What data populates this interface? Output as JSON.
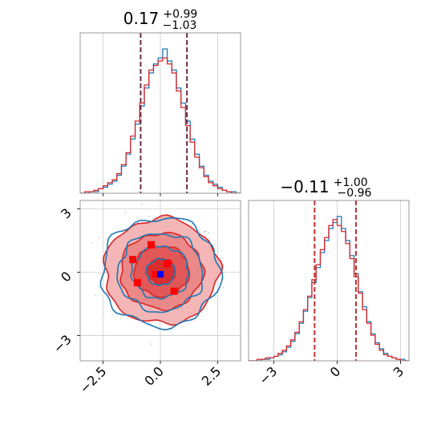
{
  "chart_data": [
    {
      "type": "histogram",
      "panel": "marginal-x",
      "title": {
        "median": "0.17",
        "plus": "+0.99",
        "minus": "−1.03"
      },
      "xlim": [
        -3.5,
        3.5
      ],
      "grid": true,
      "quantile_lines": [
        -0.86,
        1.16
      ],
      "series": [
        {
          "color": "#1f77b4",
          "bin_edges": [
            -3.5,
            -3.3,
            -3.1,
            -2.9,
            -2.7,
            -2.5,
            -2.3,
            -2.1,
            -1.9,
            -1.7,
            -1.5,
            -1.3,
            -1.1,
            -0.9,
            -0.7,
            -0.5,
            -0.3,
            -0.1,
            0.1,
            0.3,
            0.5,
            0.7,
            0.9,
            1.1,
            1.3,
            1.5,
            1.7,
            1.9,
            2.1,
            2.3,
            2.5,
            2.7,
            2.9,
            3.1,
            3.3,
            3.5
          ],
          "counts": [
            0,
            0,
            1,
            1,
            3,
            4,
            6,
            8,
            12,
            18,
            26,
            36,
            46,
            58,
            70,
            80,
            86,
            90,
            96,
            88,
            82,
            70,
            60,
            48,
            36,
            26,
            18,
            12,
            8,
            6,
            4,
            2,
            1,
            1,
            0
          ]
        },
        {
          "color": "#d62728",
          "bin_edges": [
            -3.5,
            -3.3,
            -3.1,
            -2.9,
            -2.7,
            -2.5,
            -2.3,
            -2.1,
            -1.9,
            -1.7,
            -1.5,
            -1.3,
            -1.1,
            -0.9,
            -0.7,
            -0.5,
            -0.3,
            -0.1,
            0.1,
            0.3,
            0.5,
            0.7,
            0.9,
            1.1,
            1.3,
            1.5,
            1.7,
            1.9,
            2.1,
            2.3,
            2.5,
            2.7,
            2.9,
            3.1,
            3.3,
            3.5
          ],
          "counts": [
            0,
            1,
            1,
            2,
            3,
            5,
            7,
            9,
            13,
            19,
            27,
            38,
            48,
            60,
            72,
            82,
            85,
            88,
            90,
            86,
            80,
            68,
            57,
            45,
            34,
            24,
            17,
            11,
            7,
            5,
            3,
            2,
            1,
            0,
            0
          ]
        }
      ],
      "xticks": []
    },
    {
      "type": "contour",
      "panel": "joint",
      "xlim": [
        -3.5,
        3.5
      ],
      "ylim": [
        -4.2,
        3.4
      ],
      "grid": true,
      "xticks": [
        -2.5,
        0.0,
        2.5
      ],
      "xtick_labels": [
        "−2.5",
        "0.0",
        "2.5"
      ],
      "yticks": [
        3,
        0,
        -3
      ],
      "ytick_labels": [
        "3",
        "0",
        "−3"
      ],
      "series": [
        {
          "color": "#1f77b4",
          "levels_sigma": [
            0.6,
            1.2,
            1.8,
            2.5
          ],
          "center": [
            0.0,
            0.0
          ]
        },
        {
          "color": "#d62728",
          "levels_sigma": [
            0.6,
            1.2,
            1.8,
            2.5
          ],
          "center": [
            0.05,
            0.05
          ],
          "filled": true
        }
      ],
      "red_points": [
        [
          -1.2,
          0.6
        ],
        [
          -0.4,
          1.3
        ],
        [
          0.3,
          0.4
        ],
        [
          -1.0,
          -0.5
        ],
        [
          0.6,
          -0.9
        ],
        [
          -0.2,
          -0.1
        ]
      ],
      "blue_points": [
        [
          0.0,
          -0.1
        ]
      ]
    },
    {
      "type": "histogram",
      "panel": "marginal-y",
      "title": {
        "median": "−0.11",
        "plus": "+1.00",
        "minus": "−0.96"
      },
      "xlim": [
        -4.2,
        3.4
      ],
      "grid": true,
      "quantile_lines": [
        -1.07,
        0.89
      ],
      "xticks": [
        -3,
        0,
        3
      ],
      "xtick_labels": [
        "−3",
        "0",
        "3"
      ],
      "series": [
        {
          "color": "#1f77b4",
          "bin_edges": [
            -4.2,
            -4.0,
            -3.8,
            -3.6,
            -3.4,
            -3.2,
            -3.0,
            -2.8,
            -2.6,
            -2.4,
            -2.2,
            -2.0,
            -1.8,
            -1.6,
            -1.4,
            -1.2,
            -1.0,
            -0.8,
            -0.6,
            -0.4,
            -0.2,
            0.0,
            0.2,
            0.4,
            0.6,
            0.8,
            1.0,
            1.2,
            1.4,
            1.6,
            1.8,
            2.0,
            2.2,
            2.4,
            2.6,
            2.8,
            3.0,
            3.2,
            3.4
          ],
          "counts": [
            0,
            0,
            0,
            1,
            1,
            2,
            3,
            4,
            6,
            9,
            13,
            18,
            25,
            33,
            42,
            52,
            62,
            72,
            80,
            88,
            92,
            96,
            88,
            80,
            70,
            58,
            46,
            36,
            26,
            18,
            12,
            8,
            5,
            3,
            2,
            1,
            1,
            0
          ]
        },
        {
          "color": "#d62728",
          "bin_edges": [
            -4.2,
            -4.0,
            -3.8,
            -3.6,
            -3.4,
            -3.2,
            -3.0,
            -2.8,
            -2.6,
            -2.4,
            -2.2,
            -2.0,
            -1.8,
            -1.6,
            -1.4,
            -1.2,
            -1.0,
            -0.8,
            -0.6,
            -0.4,
            -0.2,
            0.0,
            0.2,
            0.4,
            0.6,
            0.8,
            1.0,
            1.2,
            1.4,
            1.6,
            1.8,
            2.0,
            2.2,
            2.4,
            2.6,
            2.8,
            3.0,
            3.2,
            3.4
          ],
          "counts": [
            0,
            0,
            1,
            1,
            2,
            2,
            3,
            5,
            7,
            10,
            14,
            19,
            26,
            34,
            43,
            54,
            64,
            74,
            82,
            90,
            94,
            90,
            86,
            78,
            68,
            56,
            45,
            34,
            25,
            17,
            11,
            7,
            4,
            3,
            2,
            1,
            0,
            0
          ]
        }
      ]
    }
  ]
}
